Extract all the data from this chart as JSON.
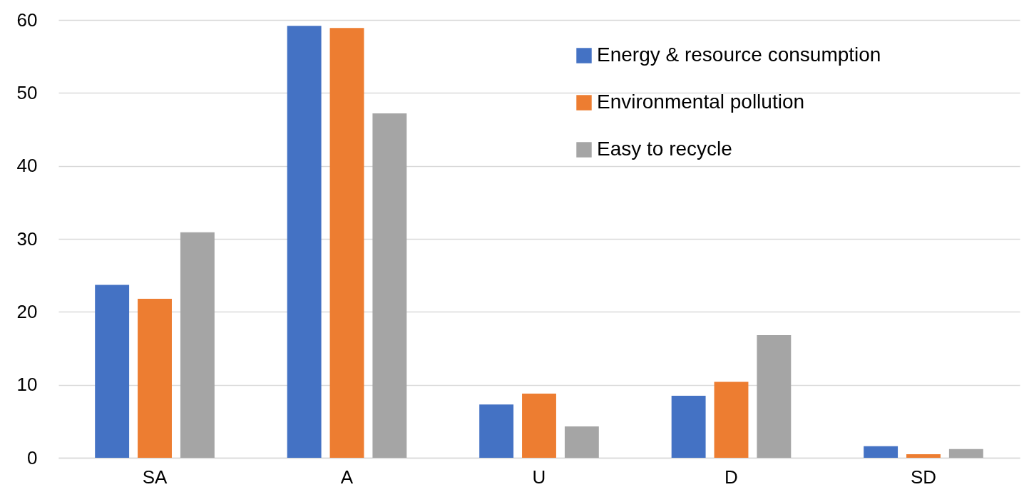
{
  "chart_data": {
    "type": "bar",
    "categories": [
      "SA",
      "A",
      "U",
      "D",
      "SD"
    ],
    "series": [
      {
        "name": "Energy & resource consumption",
        "color": "#4472c4",
        "values": [
          23.7,
          59.2,
          7.3,
          8.5,
          1.6
        ]
      },
      {
        "name": "Environmental pollution",
        "color": "#ed7d31",
        "values": [
          21.8,
          58.9,
          8.8,
          10.4,
          0.5
        ]
      },
      {
        "name": "Easy to recycle",
        "color": "#a5a5a5",
        "values": [
          30.9,
          47.2,
          4.3,
          16.8,
          1.2
        ]
      }
    ],
    "ylim": [
      0,
      60
    ],
    "yticks": [
      0,
      10,
      20,
      30,
      40,
      50,
      60
    ],
    "grid": "y",
    "legend": "top right"
  }
}
